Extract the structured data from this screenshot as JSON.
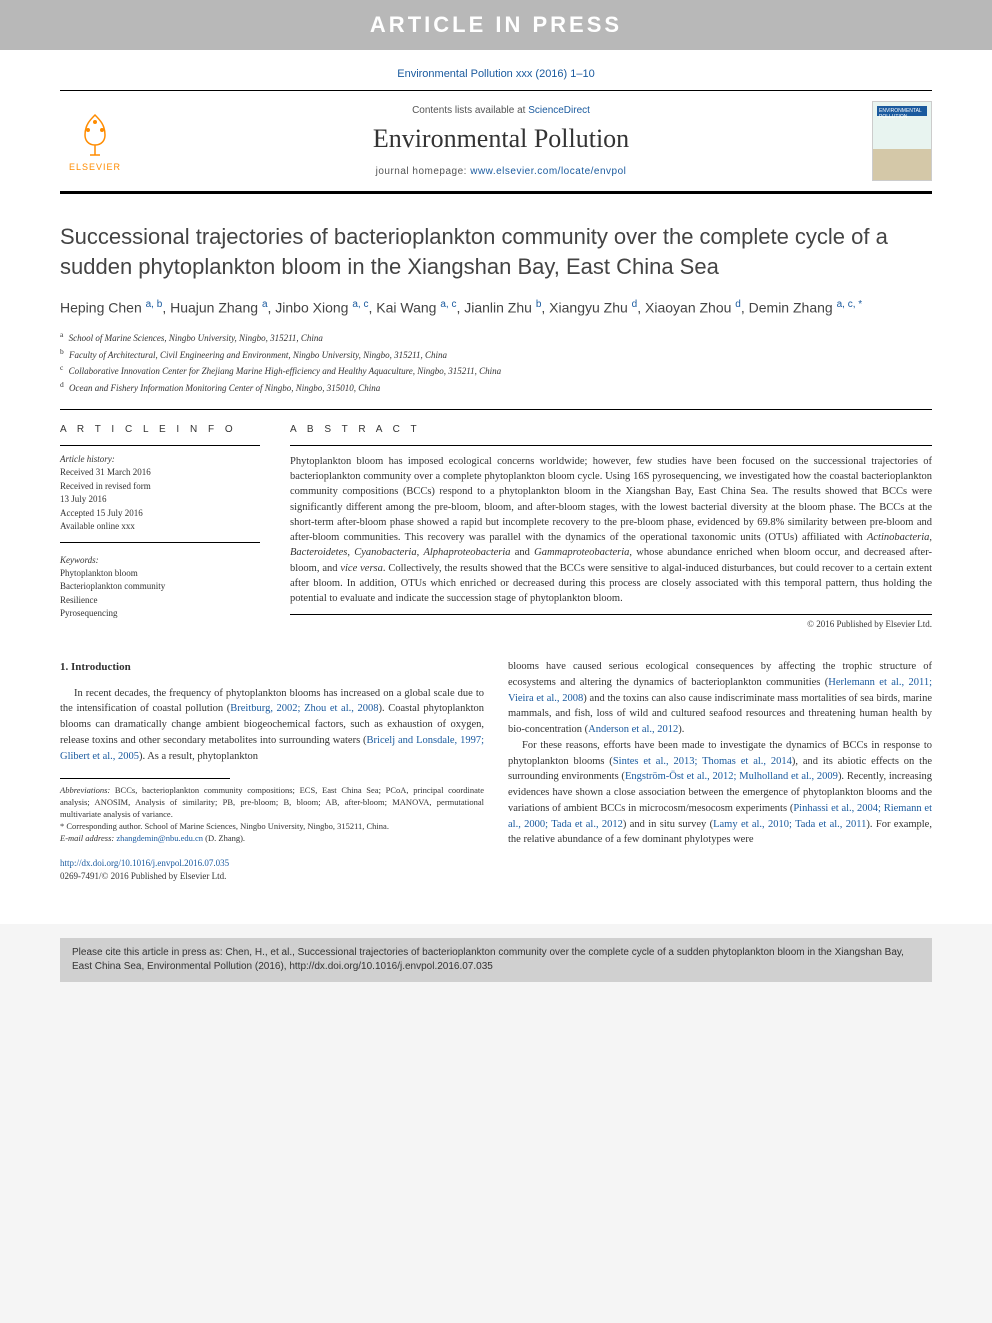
{
  "banner": {
    "text": "ARTICLE IN PRESS"
  },
  "journal_ref": "Environmental Pollution xxx (2016) 1–10",
  "header": {
    "contents_prefix": "Contents lists available at ",
    "contents_link": "ScienceDirect",
    "journal_name": "Environmental Pollution",
    "homepage_prefix": "journal homepage: ",
    "homepage_url": "www.elsevier.com/locate/envpol",
    "elsevier_label": "ELSEVIER",
    "cover_label": "ENVIRONMENTAL POLLUTION"
  },
  "title": "Successional trajectories of bacterioplankton community over the complete cycle of a sudden phytoplankton bloom in the Xiangshan Bay, East China Sea",
  "authors_html": "Heping Chen <sup>a, b</sup>, Huajun Zhang <sup>a</sup>, Jinbo Xiong <sup>a, c</sup>, Kai Wang <sup>a, c</sup>, Jianlin Zhu <sup>b</sup>, Xiangyu Zhu <sup>d</sup>, Xiaoyan Zhou <sup>d</sup>, Demin Zhang <sup>a, c, *</sup>",
  "affiliations": [
    {
      "sup": "a",
      "text": "School of Marine Sciences, Ningbo University, Ningbo, 315211, China"
    },
    {
      "sup": "b",
      "text": "Faculty of Architectural, Civil Engineering and Environment, Ningbo University, Ningbo, 315211, China"
    },
    {
      "sup": "c",
      "text": "Collaborative Innovation Center for Zhejiang Marine High-efficiency and Healthy Aquaculture, Ningbo, 315211, China"
    },
    {
      "sup": "d",
      "text": "Ocean and Fishery Information Monitoring Center of Ningbo, Ningbo, 315010, China"
    }
  ],
  "article_info": {
    "header": "A R T I C L E   I N F O",
    "history_label": "Article history:",
    "history": [
      "Received 31 March 2016",
      "Received in revised form",
      "13 July 2016",
      "Accepted 15 July 2016",
      "Available online xxx"
    ],
    "keywords_label": "Keywords:",
    "keywords": [
      "Phytoplankton bloom",
      "Bacterioplankton community",
      "Resilience",
      "Pyrosequencing"
    ]
  },
  "abstract": {
    "header": "A B S T R A C T",
    "text": "Phytoplankton bloom has imposed ecological concerns worldwide; however, few studies have been focused on the successional trajectories of bacterioplankton community over a complete phytoplankton bloom cycle. Using 16S pyrosequencing, we investigated how the coastal bacterioplankton community compositions (BCCs) respond to a phytoplankton bloom in the Xiangshan Bay, East China Sea. The results showed that BCCs were significantly different among the pre-bloom, bloom, and after-bloom stages, with the lowest bacterial diversity at the bloom phase. The BCCs at the short-term after-bloom phase showed a rapid but incomplete recovery to the pre-bloom phase, evidenced by 69.8% similarity between pre-bloom and after-bloom communities. This recovery was parallel with the dynamics of the operational taxonomic units (OTUs) affiliated with Actinobacteria, Bacteroidetes, Cyanobacteria, Alphaproteobacteria and Gammaproteobacteria, whose abundance enriched when bloom occur, and decreased after-bloom, and vice versa. Collectively, the results showed that the BCCs were sensitive to algal-induced disturbances, but could recover to a certain extent after bloom. In addition, OTUs which enriched or decreased during this process are closely associated with this temporal pattern, thus holding the potential to evaluate and indicate the succession stage of phytoplankton bloom.",
    "copyright": "© 2016 Published by Elsevier Ltd."
  },
  "body": {
    "heading": "1. Introduction",
    "col1_p1_pre": "In recent decades, the frequency of phytoplankton blooms has increased on a global scale due to the intensification of coastal pollution (",
    "col1_p1_link1": "Breitburg, 2002; Zhou et al., 2008",
    "col1_p1_mid1": "). Coastal phytoplankton blooms can dramatically change ambient biogeochemical factors, such as exhaustion of oxygen, release toxins and other secondary metabolites into surrounding waters (",
    "col1_p1_link2": "Bricelj and Lonsdale, 1997; Glibert et al., 2005",
    "col1_p1_post": "). As a result, phytoplankton",
    "col2_p1_pre": "blooms have caused serious ecological consequences by affecting the trophic structure of ecosystems and altering the dynamics of bacterioplankton communities (",
    "col2_p1_link1": "Herlemann et al., 2011; Vieira et al., 2008",
    "col2_p1_mid1": ") and the toxins can also cause indiscriminate mass mortalities of sea birds, marine mammals, and fish, loss of wild and cultured seafood resources and threatening human health by bio-concentration (",
    "col2_p1_link2": "Anderson et al., 2012",
    "col2_p1_post": ").",
    "col2_p2_pre": "For these reasons, efforts have been made to investigate the dynamics of BCCs in response to phytoplankton blooms (",
    "col2_p2_link1": "Sintes et al., 2013; Thomas et al., 2014",
    "col2_p2_mid1": "), and its abiotic effects on the surrounding environments (",
    "col2_p2_link2": "Engström-Öst et al., 2012; Mulholland et al., 2009",
    "col2_p2_mid2": "). Recently, increasing evidences have shown a close association between the emergence of phytoplankton blooms and the variations of ambient BCCs in microcosm/mesocosm experiments (",
    "col2_p2_link3": "Pinhassi et al., 2004; Riemann et al., 2000; Tada et al., 2012",
    "col2_p2_mid3": ") and in situ survey (",
    "col2_p2_link4": "Lamy et al., 2010; Tada et al., 2011",
    "col2_p2_post": "). For example, the relative abundance of a few dominant phylotypes were"
  },
  "footnotes": {
    "abbrev_label": "Abbreviations:",
    "abbrev_text": " BCCs, bacterioplankton community compositions; ECS, East China Sea; PCoA, principal coordinate analysis; ANOSIM, Analysis of similarity; PB, pre-bloom; B, bloom; AB, after-bloom; MANOVA, permutational multivariate analysis of variance.",
    "corresp": "* Corresponding author. School of Marine Sciences, Ningbo University, Ningbo, 315211, China.",
    "email_label": "E-mail address:",
    "email": " zhangdemin@nbu.edu.cn",
    "email_name": " (D. Zhang)."
  },
  "doi": {
    "url": "http://dx.doi.org/10.1016/j.envpol.2016.07.035",
    "issn_copyright": "0269-7491/© 2016 Published by Elsevier Ltd."
  },
  "cite_box": "Please cite this article in press as: Chen, H., et al., Successional trajectories of bacterioplankton community over the complete cycle of a sudden phytoplankton bloom in the Xiangshan Bay, East China Sea, Environmental Pollution (2016), http://dx.doi.org/10.1016/j.envpol.2016.07.035"
}
